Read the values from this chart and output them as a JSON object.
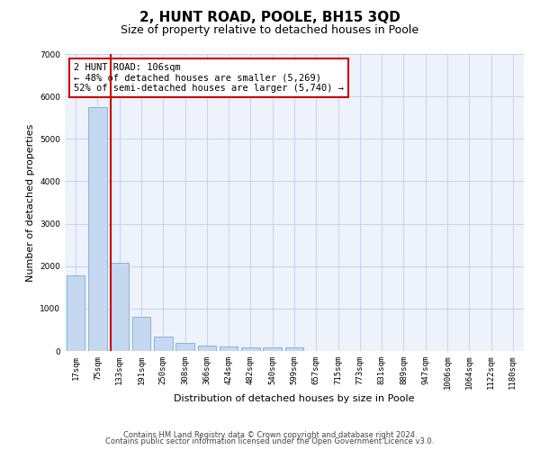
{
  "title": "2, HUNT ROAD, POOLE, BH15 3QD",
  "subtitle": "Size of property relative to detached houses in Poole",
  "xlabel": "Distribution of detached houses by size in Poole",
  "ylabel": "Number of detached properties",
  "bar_color": "#c5d8f0",
  "bar_edge_color": "#7aadd4",
  "vline_color": "#cc0000",
  "vline_x_index": 1.6,
  "categories": [
    "17sqm",
    "75sqm",
    "133sqm",
    "191sqm",
    "250sqm",
    "308sqm",
    "366sqm",
    "424sqm",
    "482sqm",
    "540sqm",
    "599sqm",
    "657sqm",
    "715sqm",
    "773sqm",
    "831sqm",
    "889sqm",
    "947sqm",
    "1006sqm",
    "1064sqm",
    "1122sqm",
    "1180sqm"
  ],
  "values": [
    1780,
    5740,
    2070,
    800,
    340,
    200,
    120,
    105,
    90,
    80,
    75,
    0,
    0,
    0,
    0,
    0,
    0,
    0,
    0,
    0,
    0
  ],
  "ylim": [
    0,
    7000
  ],
  "yticks": [
    0,
    1000,
    2000,
    3000,
    4000,
    5000,
    6000,
    7000
  ],
  "annotation_text": "2 HUNT ROAD: 106sqm\n← 48% of detached houses are smaller (5,269)\n52% of semi-detached houses are larger (5,740) →",
  "footer1": "Contains HM Land Registry data © Crown copyright and database right 2024.",
  "footer2": "Contains public sector information licensed under the Open Government Licence v3.0.",
  "plot_bg_color": "#edf2fb",
  "title_fontsize": 11,
  "subtitle_fontsize": 9,
  "axis_label_fontsize": 8,
  "tick_fontsize": 6.5,
  "annotation_fontsize": 7.5,
  "footer_fontsize": 6
}
